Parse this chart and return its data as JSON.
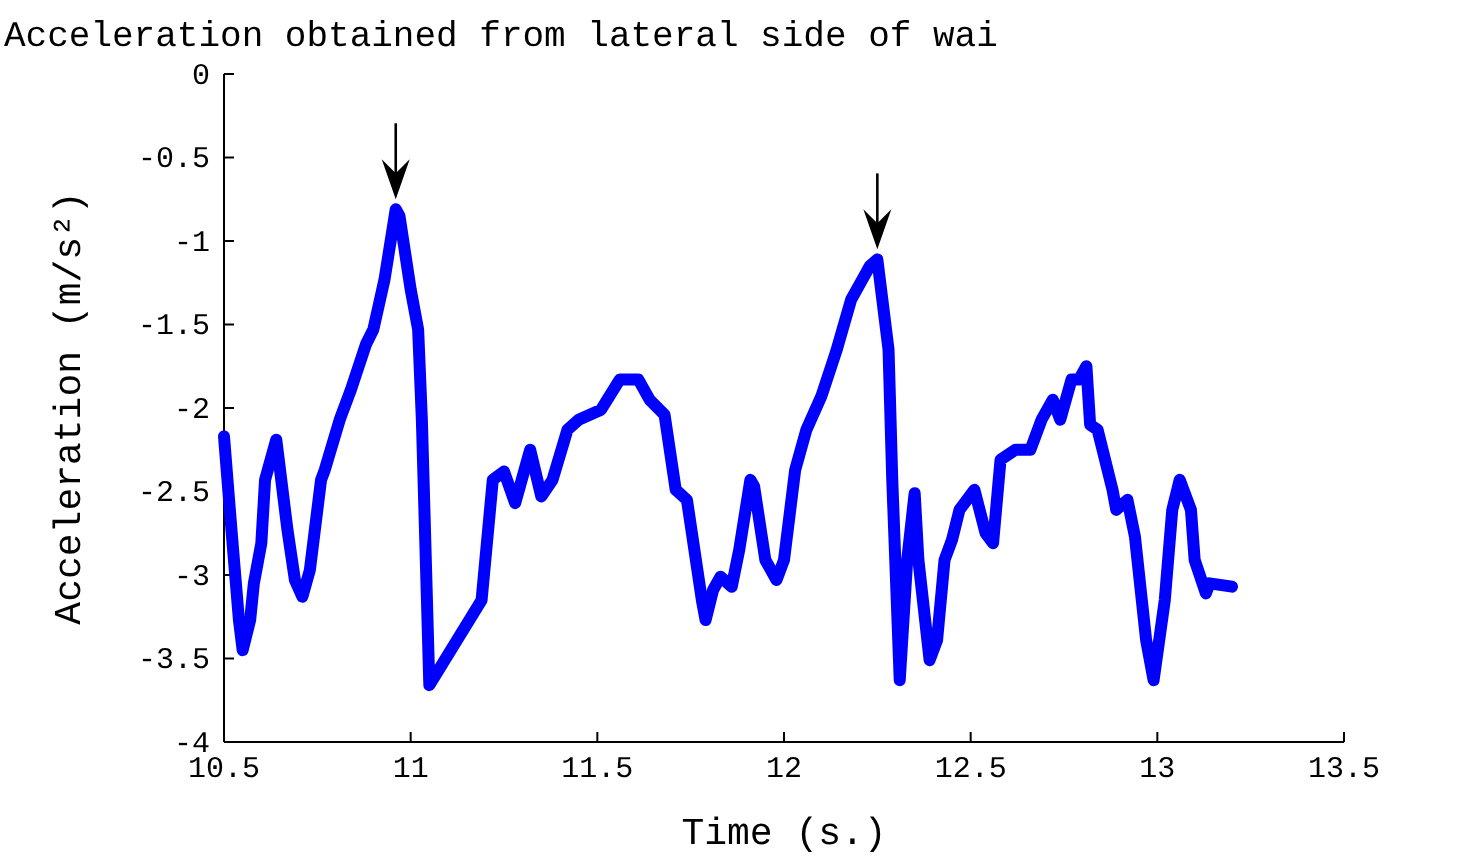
{
  "chart_data": {
    "type": "line",
    "title": "Acceleration obtained from lateral side of wai",
    "xlabel": "Time (s.)",
    "ylabel": "Acceleration (m/s²)",
    "xlim": [
      10.5,
      13.5
    ],
    "xticks": [
      10.5,
      11,
      11.5,
      12,
      12.5,
      13,
      13.5
    ],
    "ylim": [
      -4,
      0
    ],
    "yticks": [
      -4,
      -3.5,
      -3,
      -2.5,
      -2,
      -1.5,
      -1,
      -0.5,
      0
    ],
    "grid": false,
    "marker": "none",
    "line_style": "solid",
    "series": [
      {
        "color": "#0000ff",
        "x": [
          10.5,
          10.52,
          10.54,
          10.55,
          10.57,
          10.58,
          10.6,
          10.61,
          10.64,
          10.65,
          10.67,
          10.69,
          10.71,
          10.73,
          10.76,
          10.77,
          10.81,
          10.84,
          10.88,
          10.9,
          10.93,
          10.96,
          10.97,
          11.0,
          11.02,
          11.03,
          11.05,
          11.19,
          11.22,
          11.25,
          11.28,
          11.32,
          11.35,
          11.38,
          11.42,
          11.45,
          11.51,
          11.56,
          11.61,
          11.64,
          11.68,
          11.71,
          11.74,
          11.78,
          11.79,
          11.81,
          11.83,
          11.86,
          11.88,
          11.91,
          11.92,
          11.95,
          11.98,
          12.0,
          12.03,
          12.06,
          12.1,
          12.14,
          12.18,
          12.21,
          12.23,
          12.25,
          12.26,
          12.28,
          12.29,
          12.31,
          12.33,
          12.35,
          12.36,
          12.39,
          12.41,
          12.43,
          12.45,
          12.47,
          12.49,
          12.51,
          12.54,
          12.56,
          12.58,
          12.62,
          12.66,
          12.69,
          12.72,
          12.74,
          12.77,
          12.79,
          12.81,
          12.82,
          12.84,
          12.88,
          12.89,
          12.92,
          12.94,
          12.97,
          12.99,
          13.02,
          13.04,
          13.06,
          13.09,
          13.1,
          13.13,
          13.14,
          13.2
        ],
        "values": [
          -2.17,
          -2.73,
          -3.27,
          -3.45,
          -3.27,
          -3.05,
          -2.81,
          -2.43,
          -2.19,
          -2.37,
          -2.73,
          -3.03,
          -3.13,
          -2.97,
          -2.43,
          -2.37,
          -2.07,
          -1.89,
          -1.62,
          -1.53,
          -1.23,
          -0.81,
          -0.85,
          -1.29,
          -1.53,
          -2.07,
          -3.66,
          -3.15,
          -2.43,
          -2.38,
          -2.57,
          -2.25,
          -2.53,
          -2.43,
          -2.13,
          -2.07,
          -2.01,
          -1.83,
          -1.83,
          -1.95,
          -2.04,
          -2.49,
          -2.55,
          -3.15,
          -3.27,
          -3.09,
          -3.01,
          -3.07,
          -2.85,
          -2.43,
          -2.47,
          -2.91,
          -3.03,
          -2.91,
          -2.37,
          -2.13,
          -1.93,
          -1.66,
          -1.35,
          -1.23,
          -1.15,
          -1.11,
          -1.29,
          -1.65,
          -2.43,
          -3.63,
          -2.91,
          -2.51,
          -2.91,
          -3.51,
          -3.39,
          -2.91,
          -2.79,
          -2.61,
          -2.55,
          -2.49,
          -2.75,
          -2.81,
          -2.31,
          -2.25,
          -2.25,
          -2.07,
          -1.95,
          -2.07,
          -1.83,
          -1.83,
          -1.75,
          -2.1,
          -2.13,
          -2.49,
          -2.61,
          -2.55,
          -2.77,
          -3.39,
          -3.63,
          -3.15,
          -2.61,
          -2.43,
          -2.61,
          -2.91,
          -3.11,
          -3.05,
          -3.07
        ]
      }
    ]
  }
}
